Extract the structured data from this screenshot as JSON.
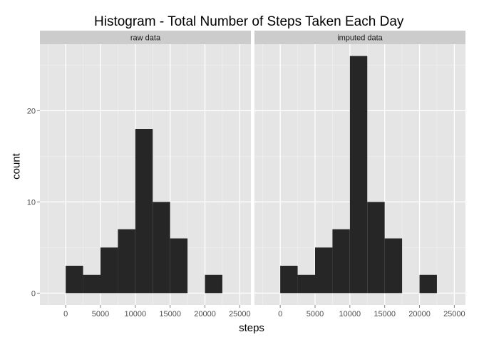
{
  "title": "Histogram - Total Number of Steps Taken Each Day",
  "chart_data": {
    "type": "bar",
    "title": "Histogram - Total Number of Steps Taken Each Day",
    "xlabel": "steps",
    "ylabel": "count",
    "xlim": [
      -3700,
      26600
    ],
    "ylim": [
      -1.3,
      27.3
    ],
    "x_ticks": [
      0,
      5000,
      10000,
      15000,
      20000,
      25000
    ],
    "y_ticks": [
      0,
      10,
      20
    ],
    "grid": true,
    "bar_color": "#262626",
    "panel_background": "#e5e5e5",
    "strip_background": "#cccccc",
    "bin_edges": [
      0,
      2500,
      5000,
      7500,
      10000,
      12500,
      15000,
      17500,
      20000,
      22500
    ],
    "panels": [
      {
        "strip": "raw data",
        "counts": [
          3,
          2,
          5,
          7,
          18,
          10,
          6,
          0,
          2
        ]
      },
      {
        "strip": "imputed data",
        "counts": [
          3,
          2,
          5,
          7,
          26,
          10,
          6,
          0,
          2
        ]
      }
    ]
  }
}
